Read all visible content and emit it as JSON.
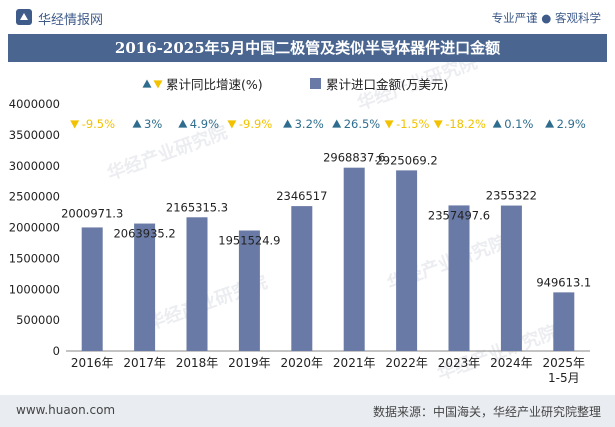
{
  "header": {
    "site_name": "华经情报网",
    "tagline": "专业严谨 ● 客观科学",
    "title": "2016-2025年5月中国二极管及类似半导体器件进口金额"
  },
  "footer": {
    "url": "www.huaon.com",
    "source": "数据来源：中国海关，华经产业研究院整理"
  },
  "watermark": "华经产业研究院",
  "colors": {
    "bar": "#6a7aa6",
    "up": "#2f6d8f",
    "down": "#f2c200",
    "title_bg": "#4a6590"
  },
  "chart_data": {
    "type": "bar",
    "categories": [
      "2016年",
      "2017年",
      "2018年",
      "2019年",
      "2020年",
      "2021年",
      "2022年",
      "2023年",
      "2024年",
      "2025年\n1-5月"
    ],
    "series": [
      {
        "name": "累计进口金额(万美元)",
        "values": [
          2000971.3,
          2063935.2,
          2165315.3,
          1951524.9,
          2346517,
          2968837.6,
          2925069.2,
          2357497.6,
          2355322,
          949613.1
        ],
        "labels": [
          "2000971.3",
          "2063935.2",
          "2165315.3",
          "1951524.9",
          "2346517",
          "2968837.6",
          "2925069.2",
          "2357497.6",
          "2355322",
          "949613.1"
        ]
      },
      {
        "name": "累计同比增速(%)",
        "values": [
          -9.5,
          3,
          4.9,
          -9.9,
          3.2,
          26.5,
          -1.5,
          -18.2,
          0.1,
          2.9
        ],
        "labels": [
          "-9.5%",
          "3%",
          "4.9%",
          "-9.9%",
          "3.2%",
          "26.5%",
          "-1.5%",
          "-18.2%",
          "0.1%",
          "2.9%"
        ]
      }
    ],
    "y_ticks": [
      "0",
      "500000",
      "1000000",
      "1500000",
      "2000000",
      "2500000",
      "3000000",
      "3500000",
      "4000000"
    ],
    "ylim": [
      0,
      4000000
    ],
    "legend": "top"
  }
}
